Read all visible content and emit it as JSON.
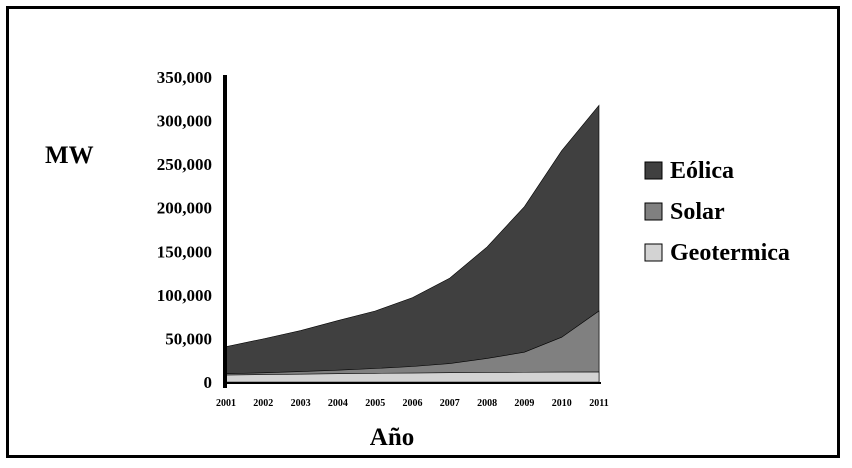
{
  "chart_data": {
    "type": "area",
    "stacked": true,
    "title": "",
    "ylabel": "MW",
    "xlabel": "Año",
    "x": [
      "2001",
      "2002",
      "2003",
      "2004",
      "2005",
      "2006",
      "2007",
      "2008",
      "2009",
      "2010",
      "2011"
    ],
    "ylim": [
      0,
      350000
    ],
    "yticks": [
      0,
      50000,
      100000,
      150000,
      200000,
      250000,
      300000,
      350000
    ],
    "ytick_labels": [
      "0",
      "50,000",
      "100,000",
      "150,000",
      "200,000",
      "250,000",
      "300,000",
      "350,000"
    ],
    "legend_position": "right",
    "grid": false,
    "series": [
      {
        "name": "Geotermica",
        "color": "#d3d3d3",
        "values": [
          8000,
          8500,
          9000,
          9500,
          10000,
          10300,
          10700,
          11000,
          11200,
          11400,
          11500
        ]
      },
      {
        "name": "Solar",
        "color": "#808080",
        "values": [
          1500,
          2000,
          3000,
          4000,
          5500,
          7500,
          10500,
          16000,
          23000,
          40000,
          70000
        ]
      },
      {
        "name": "Eólica",
        "color": "#404040",
        "values": [
          31000,
          39000,
          47000,
          57000,
          66000,
          79000,
          98000,
          128000,
          167000,
          214000,
          236000
        ]
      }
    ]
  }
}
